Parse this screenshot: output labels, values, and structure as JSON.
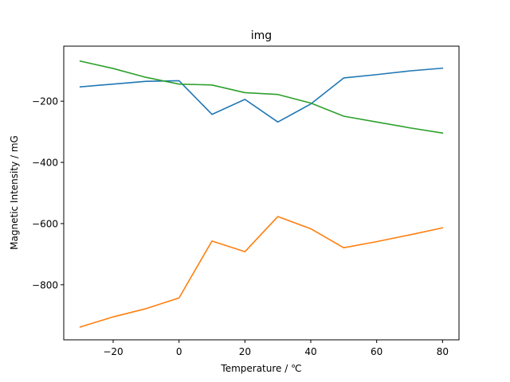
{
  "chart_data": {
    "type": "line",
    "title": "img",
    "xlabel": "Temperature / ℃",
    "ylabel": "Magnetic Intensity / mG",
    "xlim": [
      -35,
      85
    ],
    "ylim": [
      -980,
      -20
    ],
    "xticks": [
      -20,
      0,
      20,
      40,
      60,
      80
    ],
    "yticks": [
      -800,
      -600,
      -400,
      -200
    ],
    "xtick_labels": [
      "−20",
      "0",
      "20",
      "40",
      "60",
      "80"
    ],
    "ytick_labels": [
      "−800",
      "−600",
      "−400",
      "−200"
    ],
    "grid": false,
    "series": [
      {
        "color": "#1f77b4",
        "x": [
          -30,
          -20,
          -10,
          0,
          10,
          20,
          30,
          40,
          50,
          60,
          70,
          80
        ],
        "y": [
          -153,
          -144,
          -135,
          -133,
          -243,
          -194,
          -268,
          -209,
          -124,
          -113,
          -101,
          -92
        ]
      },
      {
        "color": "#ff7f0e",
        "x": [
          -30,
          -20,
          -10,
          0,
          10,
          20,
          30,
          40,
          50,
          60,
          70,
          80
        ],
        "y": [
          -938,
          -905,
          -878,
          -843,
          -657,
          -692,
          -577,
          -617,
          -679,
          -659,
          -637,
          -614
        ]
      },
      {
        "color": "#2ca02c",
        "x": [
          -30,
          -20,
          -10,
          0,
          10,
          20,
          30,
          40,
          50,
          60,
          70,
          80
        ],
        "y": [
          -69,
          -93,
          -122,
          -144,
          -147,
          -172,
          -178,
          -206,
          -249,
          -268,
          -287,
          -304
        ]
      }
    ]
  }
}
